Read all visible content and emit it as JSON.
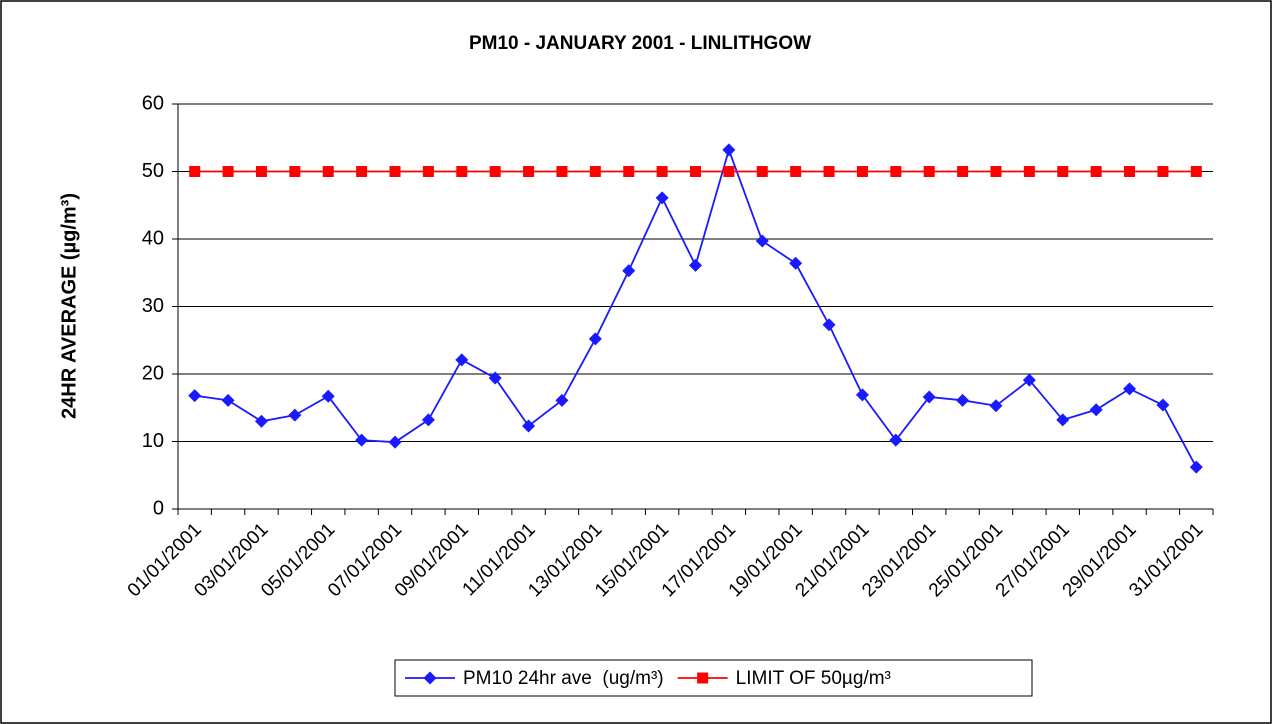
{
  "chart_data": {
    "type": "line",
    "title": "PM10 - JANUARY 2001 - LINLITHGOW",
    "y_label": "24HR AVERAGE (µg/m³)",
    "categories": [
      "01/01/2001",
      null,
      "03/01/2001",
      null,
      "05/01/2001",
      null,
      "07/01/2001",
      null,
      "09/01/2001",
      null,
      "11/01/2001",
      null,
      "13/01/2001",
      null,
      "15/01/2001",
      null,
      "17/01/2001",
      null,
      "19/01/2001",
      null,
      "21/01/2001",
      null,
      "23/01/2001",
      null,
      "25/01/2001",
      null,
      "27/01/2001",
      null,
      "29/01/2001",
      null,
      "31/01/2001"
    ],
    "series": [
      {
        "name": "PM10 24hr ave  (ug/m³)",
        "color": "#1a1aff",
        "marker": "diamond",
        "values": [
          16.8,
          16.1,
          13.0,
          13.9,
          16.7,
          10.2,
          9.9,
          13.2,
          22.1,
          19.4,
          12.3,
          16.1,
          25.2,
          35.3,
          46.1,
          36.1,
          53.2,
          39.7,
          36.4,
          27.3,
          16.9,
          10.2,
          16.6,
          16.1,
          15.3,
          19.1,
          13.2,
          14.7,
          17.8,
          15.4,
          6.2
        ]
      },
      {
        "name": "LIMIT OF 50µg/m³",
        "color": "#ff0000",
        "marker": "square",
        "values": [
          50,
          50,
          50,
          50,
          50,
          50,
          50,
          50,
          50,
          50,
          50,
          50,
          50,
          50,
          50,
          50,
          50,
          50,
          50,
          50,
          50,
          50,
          50,
          50,
          50,
          50,
          50,
          50,
          50,
          50,
          50
        ]
      }
    ],
    "ylim": [
      0,
      60
    ],
    "yticks": [
      0,
      10,
      20,
      30,
      40,
      50,
      60
    ],
    "grid": true,
    "legend": "bottom"
  }
}
